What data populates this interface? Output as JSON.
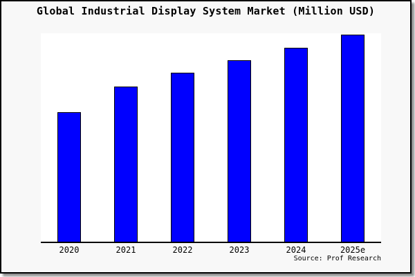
{
  "chart_data": {
    "type": "bar",
    "title": "Global Industrial Display System Market (Million USD)",
    "categories": [
      "2020",
      "2021",
      "2022",
      "2023",
      "2024",
      "2025e"
    ],
    "values": [
      188,
      225,
      245,
      263,
      281,
      300
    ],
    "value_note": "relative heights; no y-axis scale or value labels shown in chart",
    "xlabel": "",
    "ylabel": "",
    "ylim": [
      0,
      302
    ],
    "grid": false,
    "legend": false,
    "source": "Source: Prof Research",
    "colors": {
      "bar_fill": "#0000FF",
      "bar_border": "#000000",
      "axis": "#000000",
      "panel_background": "#F8F8F8",
      "plot_background": "#FFFFFF",
      "text": "#000000"
    }
  }
}
